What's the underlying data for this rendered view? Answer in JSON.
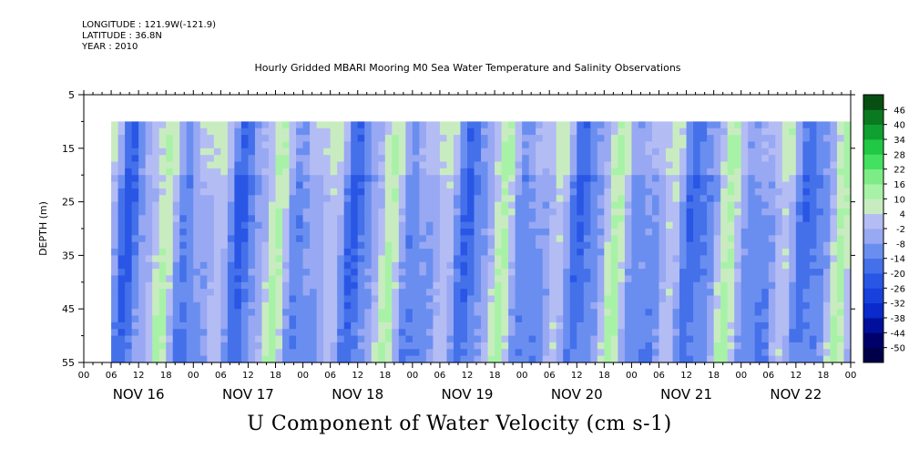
{
  "header": {
    "longitude": "LONGITUDE : 121.9W(-121.9)",
    "latitude": "LATITUDE : 36.8N",
    "year": "YEAR : 2010"
  },
  "chart_data": {
    "type": "heatmap",
    "title": "Hourly Gridded MBARI Mooring M0 Sea Water Temperature and Salinity Observations",
    "xlabel": "",
    "ylabel": "DEPTH (m)",
    "colorbar_label": "U Component of Water Velocity (cm s-1)",
    "ylim": [
      55,
      5
    ],
    "y_ticks": [
      5,
      15,
      25,
      35,
      45,
      55
    ],
    "x_hour_ticks": [
      "00",
      "06",
      "12",
      "18",
      "00",
      "06",
      "12",
      "18",
      "00",
      "06",
      "12",
      "18",
      "00",
      "06",
      "12",
      "18",
      "00",
      "06",
      "12",
      "18",
      "00",
      "06",
      "12",
      "18",
      "00",
      "06",
      "12",
      "18",
      "00"
    ],
    "x_day_labels": [
      "NOV 16",
      "NOV 17",
      "NOV 18",
      "NOV 19",
      "NOV 20",
      "NOV 21",
      "NOV 22"
    ],
    "x_range_days": [
      "2010-11-16 00:00",
      "2010-11-23 00:00"
    ],
    "data_start": "2010-11-16 06:00",
    "data_depth_range_m": [
      10,
      55
    ],
    "colorbar_levels": [
      -50,
      -44,
      -38,
      -32,
      -26,
      -20,
      -14,
      -8,
      -2,
      4,
      10,
      16,
      22,
      28,
      34,
      40,
      46
    ],
    "colorbar_colors": [
      "#00004a",
      "#00006a",
      "#00109a",
      "#0a2acc",
      "#1840dc",
      "#2a56e6",
      "#4470ea",
      "#6a8ef0",
      "#98a8f2",
      "#b4bcf4",
      "#c8ecc0",
      "#a8f2a8",
      "#7eec86",
      "#44e060",
      "#20c844",
      "#10a030",
      "#0a7a20",
      "#064e12"
    ],
    "description_dominant": "alternating bands of westward (blue) and eastward (green) flow over Nov 16-22"
  }
}
